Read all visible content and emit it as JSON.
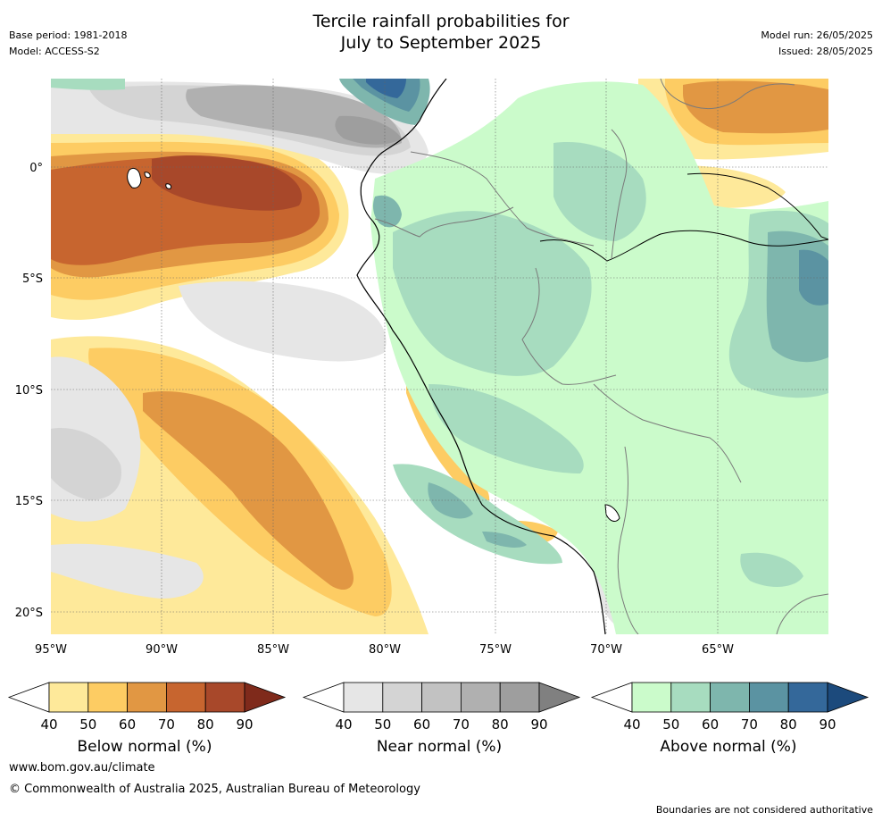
{
  "header": {
    "title_line1": "Tercile rainfall probabilities for",
    "title_line2": "July to September 2025",
    "base_period": "Base period: 1981-2018",
    "model": "Model: ACCESS-S2",
    "model_run": "Model run: 26/05/2025",
    "issued": "Issued: 28/05/2025"
  },
  "map": {
    "lat_labels": [
      "0°",
      "5°S",
      "10°S",
      "15°S",
      "20°S"
    ],
    "lon_labels": [
      "95°W",
      "90°W",
      "85°W",
      "80°W",
      "75°W",
      "70°W",
      "65°W"
    ]
  },
  "colorbars": {
    "ticks": [
      "40",
      "50",
      "60",
      "70",
      "80",
      "90"
    ],
    "below": {
      "label": "Below normal (%)",
      "colors": [
        "#ffffff",
        "#fee99a",
        "#fdcc63",
        "#e19743",
        "#c7652f",
        "#a8482a",
        "#7f2a1b"
      ]
    },
    "near": {
      "label": "Near normal (%)",
      "colors": [
        "#ffffff",
        "#e6e6e6",
        "#d4d4d4",
        "#c2c2c2",
        "#b0b0b0",
        "#9e9e9e",
        "#808080"
      ]
    },
    "above": {
      "label": "Above normal (%)",
      "colors": [
        "#ffffff",
        "#cbfbcb",
        "#a7dcbf",
        "#7eb6ad",
        "#5b93a2",
        "#34689a",
        "#1c4a7c"
      ]
    }
  },
  "footer": {
    "url": "www.bom.gov.au/climate",
    "copyright": "© Commonwealth of Australia 2025, Australian Bureau of Meteorology",
    "disclaimer": "Boundaries are not considered authoritative"
  }
}
